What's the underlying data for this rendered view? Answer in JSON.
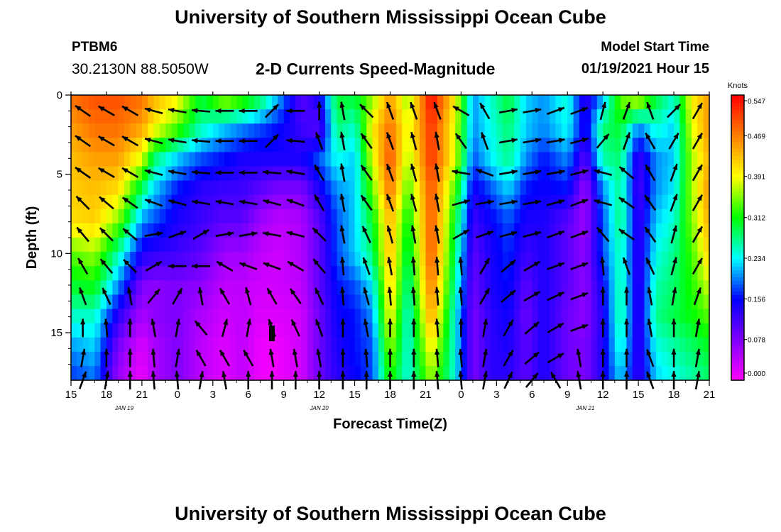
{
  "header": {
    "title_top": "University of Southern Mississippi Ocean Cube",
    "title_bottom": "University of Southern Mississippi Ocean Cube",
    "station_id": "PTBM6",
    "station_coords": "30.2130N 88.5050W",
    "model_start_label": "Model Start Time",
    "model_start_value": "01/19/2021 Hour 15"
  },
  "chart_data": {
    "type": "heatmap",
    "title": "2-D Currents Speed-Magnitude",
    "xlabel": "Forecast Time(Z)",
    "ylabel": "Depth (ft)",
    "x_unit": "hours since 01/19/2021 15Z",
    "xlim": [
      0,
      54
    ],
    "ylim": [
      0,
      18
    ],
    "y_inverted": true,
    "x_ticks": [
      0,
      3,
      6,
      9,
      12,
      15,
      18,
      21,
      24,
      27,
      30,
      33,
      36,
      39,
      42,
      45,
      48,
      51,
      54
    ],
    "x_tick_labels": [
      "15",
      "18",
      "21",
      "0",
      "3",
      "6",
      "9",
      "12",
      "15",
      "18",
      "21",
      "0",
      "3",
      "6",
      "9",
      "12",
      "15",
      "18",
      "21"
    ],
    "y_ticks": [
      0,
      5,
      10,
      15
    ],
    "y_tick_labels": [
      "0",
      "5",
      "10",
      "15"
    ],
    "date_labels": [
      {
        "x": 4.5,
        "text": "JAN 19"
      },
      {
        "x": 21,
        "text": "JAN 20"
      },
      {
        "x": 43.5,
        "text": "JAN 21"
      }
    ],
    "colorbar": {
      "title": "Knots",
      "min": 0.0,
      "max": 0.547,
      "tick_values": [
        0.0,
        0.078,
        0.156,
        0.234,
        0.312,
        0.391,
        0.469,
        0.547
      ],
      "tick_labels": [
        "0.000",
        "0.078",
        "0.156",
        "0.234",
        "0.312",
        "0.391",
        "0.469",
        "0.547"
      ],
      "colors": [
        "#ff00ff",
        "#8000ff",
        "#0000ff",
        "#00ffff",
        "#00ff00",
        "#ffff00",
        "#ff8000",
        "#ff0000"
      ]
    },
    "speed_keyframes": {
      "depth": [
        0,
        2,
        4,
        6,
        8,
        10,
        12,
        14,
        16,
        18
      ],
      "times": [
        0,
        2,
        4,
        6,
        7,
        9,
        11,
        13,
        14.5,
        16,
        17.5,
        19.5,
        21,
        22.5,
        24,
        25.5,
        27,
        28.5,
        30.5,
        32.5,
        34,
        35.5,
        37,
        38.5,
        40,
        42,
        43.5,
        45,
        46.5,
        48,
        49.5,
        51,
        52.5,
        54
      ],
      "values": [
        [
          0.48,
          0.5,
          0.5,
          0.48,
          0.44,
          0.4,
          0.3,
          0.38,
          0.35,
          0.3,
          0.22,
          0.1,
          0.15,
          0.3,
          0.3,
          0.35,
          0.45,
          0.35,
          0.55,
          0.4,
          0.2,
          0.25,
          0.3,
          0.22,
          0.2,
          0.25,
          0.12,
          0.2,
          0.35,
          0.4,
          0.3,
          0.25,
          0.4,
          0.45
        ],
        [
          0.45,
          0.48,
          0.48,
          0.45,
          0.4,
          0.34,
          0.26,
          0.22,
          0.2,
          0.18,
          0.16,
          0.12,
          0.1,
          0.28,
          0.25,
          0.4,
          0.48,
          0.38,
          0.52,
          0.38,
          0.2,
          0.24,
          0.28,
          0.22,
          0.2,
          0.24,
          0.14,
          0.28,
          0.3,
          0.2,
          0.25,
          0.22,
          0.38,
          0.46
        ],
        [
          0.43,
          0.45,
          0.45,
          0.38,
          0.28,
          0.22,
          0.18,
          0.16,
          0.14,
          0.14,
          0.14,
          0.14,
          0.18,
          0.24,
          0.22,
          0.38,
          0.5,
          0.36,
          0.52,
          0.38,
          0.18,
          0.23,
          0.27,
          0.2,
          0.16,
          0.2,
          0.1,
          0.26,
          0.28,
          0.12,
          0.2,
          0.22,
          0.36,
          0.44
        ],
        [
          0.42,
          0.43,
          0.41,
          0.28,
          0.22,
          0.16,
          0.13,
          0.12,
          0.12,
          0.1,
          0.08,
          0.08,
          0.14,
          0.2,
          0.22,
          0.34,
          0.48,
          0.33,
          0.5,
          0.33,
          0.14,
          0.18,
          0.22,
          0.16,
          0.15,
          0.16,
          0.06,
          0.2,
          0.27,
          0.11,
          0.2,
          0.23,
          0.36,
          0.46
        ],
        [
          0.41,
          0.42,
          0.35,
          0.2,
          0.18,
          0.14,
          0.12,
          0.1,
          0.1,
          0.06,
          0.04,
          0.05,
          0.1,
          0.18,
          0.22,
          0.3,
          0.44,
          0.3,
          0.5,
          0.3,
          0.12,
          0.15,
          0.18,
          0.14,
          0.14,
          0.1,
          0.06,
          0.18,
          0.28,
          0.12,
          0.22,
          0.25,
          0.35,
          0.44
        ],
        [
          0.34,
          0.36,
          0.26,
          0.14,
          0.13,
          0.12,
          0.1,
          0.06,
          0.06,
          0.04,
          0.03,
          0.05,
          0.1,
          0.18,
          0.22,
          0.28,
          0.44,
          0.28,
          0.5,
          0.28,
          0.1,
          0.14,
          0.17,
          0.12,
          0.14,
          0.1,
          0.07,
          0.18,
          0.26,
          0.12,
          0.24,
          0.27,
          0.33,
          0.42
        ],
        [
          0.3,
          0.31,
          0.2,
          0.08,
          0.07,
          0.08,
          0.07,
          0.04,
          0.04,
          0.03,
          0.03,
          0.04,
          0.1,
          0.16,
          0.18,
          0.23,
          0.42,
          0.26,
          0.48,
          0.26,
          0.09,
          0.14,
          0.16,
          0.1,
          0.14,
          0.1,
          0.07,
          0.15,
          0.27,
          0.12,
          0.26,
          0.28,
          0.32,
          0.38
        ],
        [
          0.25,
          0.25,
          0.13,
          0.05,
          0.07,
          0.08,
          0.05,
          0.03,
          0.04,
          0.02,
          0.02,
          0.03,
          0.09,
          0.15,
          0.16,
          0.2,
          0.4,
          0.24,
          0.45,
          0.24,
          0.08,
          0.13,
          0.15,
          0.09,
          0.14,
          0.09,
          0.07,
          0.14,
          0.27,
          0.12,
          0.27,
          0.29,
          0.31,
          0.34
        ],
        [
          0.2,
          0.22,
          0.08,
          0.02,
          0.05,
          0.08,
          0.04,
          0.02,
          0.04,
          0.01,
          0.01,
          0.03,
          0.09,
          0.14,
          0.16,
          0.18,
          0.36,
          0.24,
          0.4,
          0.24,
          0.08,
          0.13,
          0.14,
          0.1,
          0.14,
          0.09,
          0.08,
          0.14,
          0.25,
          0.12,
          0.24,
          0.26,
          0.28,
          0.3
        ],
        [
          0.17,
          0.19,
          0.06,
          0.01,
          0.05,
          0.08,
          0.04,
          0.02,
          0.04,
          0.01,
          0.01,
          0.03,
          0.09,
          0.13,
          0.15,
          0.18,
          0.32,
          0.24,
          0.36,
          0.24,
          0.08,
          0.13,
          0.13,
          0.1,
          0.14,
          0.09,
          0.08,
          0.14,
          0.22,
          0.12,
          0.22,
          0.24,
          0.26,
          0.28
        ]
      ]
    },
    "vectors": {
      "times": [
        1,
        3,
        5,
        7,
        9,
        11,
        13,
        15,
        17,
        19,
        21,
        23,
        25,
        27,
        29,
        31,
        33,
        35,
        37,
        39,
        41,
        43,
        45,
        47,
        49,
        51,
        53
      ],
      "depths": [
        1,
        2.9,
        4.9,
        6.8,
        8.8,
        10.8,
        12.7,
        14.7,
        16.6,
        18
      ],
      "note": "direction in degrees (0 = right, 90 = up)",
      "angles": [
        [
          145,
          150,
          150,
          165,
          170,
          175,
          180,
          180,
          45,
          180,
          90,
          100,
          135,
          110,
          110,
          110,
          150,
          120,
          10,
          10,
          20,
          20,
          75,
          70,
          110,
          45,
          60
        ],
        [
          145,
          150,
          150,
          165,
          170,
          175,
          180,
          180,
          45,
          175,
          110,
          100,
          125,
          110,
          105,
          100,
          125,
          110,
          10,
          10,
          10,
          15,
          50,
          70,
          120,
          60,
          60
        ],
        [
          145,
          150,
          150,
          165,
          170,
          175,
          180,
          180,
          175,
          170,
          120,
          100,
          125,
          110,
          105,
          100,
          170,
          160,
          10,
          10,
          10,
          15,
          165,
          140,
          120,
          70,
          60
        ],
        [
          135,
          140,
          145,
          160,
          165,
          170,
          170,
          170,
          165,
          160,
          120,
          100,
          125,
          110,
          105,
          100,
          15,
          10,
          10,
          10,
          15,
          20,
          165,
          145,
          125,
          70,
          60
        ],
        [
          130,
          135,
          140,
          10,
          20,
          30,
          10,
          10,
          170,
          165,
          135,
          100,
          115,
          105,
          100,
          100,
          30,
          20,
          15,
          15,
          20,
          20,
          130,
          145,
          125,
          75,
          60
        ],
        [
          120,
          130,
          135,
          30,
          180,
          180,
          150,
          160,
          160,
          150,
          130,
          95,
          110,
          100,
          95,
          95,
          95,
          60,
          40,
          30,
          20,
          20,
          95,
          110,
          115,
          75,
          60
        ],
        [
          110,
          115,
          100,
          50,
          60,
          100,
          120,
          105,
          120,
          125,
          115,
          95,
          105,
          95,
          95,
          95,
          95,
          60,
          40,
          30,
          25,
          20,
          90,
          90,
          100,
          80,
          70
        ],
        [
          90,
          95,
          90,
          100,
          80,
          130,
          75,
          80,
          110,
          115,
          110,
          90,
          100,
          90,
          90,
          95,
          90,
          80,
          60,
          40,
          30,
          20,
          90,
          90,
          100,
          90,
          80
        ],
        [
          80,
          90,
          90,
          95,
          80,
          120,
          120,
          120,
          100,
          100,
          100,
          90,
          95,
          90,
          90,
          95,
          95,
          80,
          60,
          40,
          30,
          100,
          90,
          90,
          110,
          90,
          80
        ],
        [
          70,
          80,
          90,
          95,
          95,
          80,
          100,
          90,
          90,
          90,
          90,
          90,
          90,
          90,
          90,
          95,
          95,
          80,
          65,
          50,
          120,
          100,
          90,
          90,
          110,
          90,
          80
        ]
      ]
    },
    "marker": {
      "x": 17,
      "y": 15,
      "label": "current time marker"
    }
  }
}
